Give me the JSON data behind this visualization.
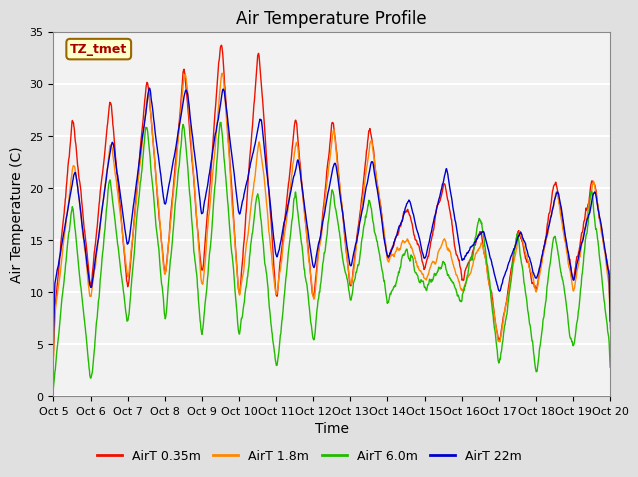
{
  "title": "Air Temperature Profile",
  "xlabel": "Time",
  "ylabel": "Air Temperature (C)",
  "annotation": "TZ_tmet",
  "ylim": [
    0,
    35
  ],
  "tick_labels": [
    "Oct 5",
    "Oct 6",
    "Oct 7",
    "Oct 8",
    "Oct 9",
    "Oct 10",
    "Oct 11",
    "Oct 12",
    "Oct 13",
    "Oct 14",
    "Oct 15",
    "Oct 16",
    "Oct 17",
    "Oct 18",
    "Oct 19",
    "Oct 20"
  ],
  "colors": {
    "AirT_035": "#EE1100",
    "AirT_18": "#FF8800",
    "AirT_60": "#22BB00",
    "AirT_22": "#0000CC"
  },
  "legend_labels": [
    "AirT 0.35m",
    "AirT 1.8m",
    "AirT 6.0m",
    "AirT 22m"
  ],
  "background_color": "#E0E0E0",
  "plot_bg_color": "#F2F2F2",
  "title_fontsize": 12,
  "label_fontsize": 10,
  "tick_fontsize": 8,
  "grid_color": "#FFFFFF",
  "n_points": 1500
}
